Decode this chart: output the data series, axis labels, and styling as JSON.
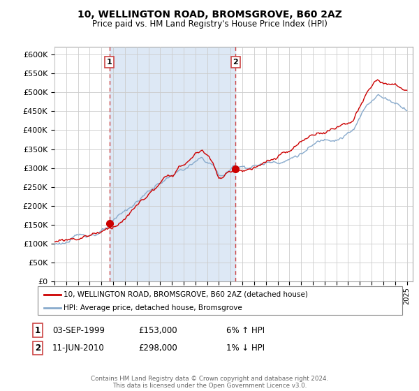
{
  "title": "10, WELLINGTON ROAD, BROMSGROVE, B60 2AZ",
  "subtitle": "Price paid vs. HM Land Registry's House Price Index (HPI)",
  "legend_line1": "10, WELLINGTON ROAD, BROMSGROVE, B60 2AZ (detached house)",
  "legend_line2": "HPI: Average price, detached house, Bromsgrove",
  "annotation1_date": "03-SEP-1999",
  "annotation1_price": "£153,000",
  "annotation1_hpi": "6% ↑ HPI",
  "annotation2_date": "11-JUN-2010",
  "annotation2_price": "£298,000",
  "annotation2_hpi": "1% ↓ HPI",
  "footer": "Contains HM Land Registry data © Crown copyright and database right 2024.\nThis data is licensed under the Open Government Licence v3.0.",
  "ylim": [
    0,
    620000
  ],
  "yticks": [
    0,
    50000,
    100000,
    150000,
    200000,
    250000,
    300000,
    350000,
    400000,
    450000,
    500000,
    550000,
    600000
  ],
  "sale1_year": 1999.67,
  "sale1_price": 153000,
  "sale2_year": 2010.42,
  "sale2_price": 298000,
  "red_color": "#cc0000",
  "blue_color": "#88aacc",
  "vline_color": "#cc4444",
  "shade_color": "#dde8f5",
  "background_color": "#ffffff",
  "grid_color": "#cccccc"
}
